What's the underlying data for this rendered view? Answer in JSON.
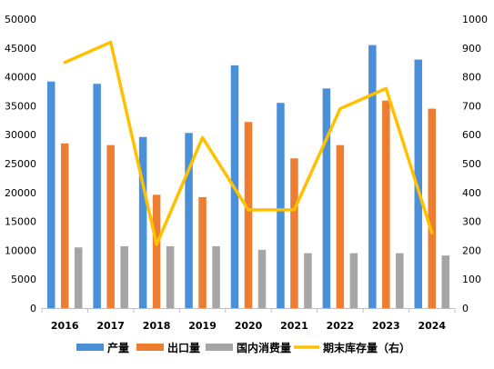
{
  "chart_data": {
    "type": "bar",
    "categories": [
      "2016",
      "2017",
      "2018",
      "2019",
      "2020",
      "2021",
      "2022",
      "2023",
      "2024"
    ],
    "series": [
      {
        "name": "产量",
        "kind": "bar",
        "axis": "left",
        "color": "#4A90D9",
        "values": [
          39200,
          38800,
          29600,
          30300,
          42000,
          35500,
          38000,
          45500,
          43000
        ]
      },
      {
        "name": "出口量",
        "kind": "bar",
        "axis": "left",
        "color": "#ED7D31",
        "values": [
          28500,
          28200,
          19600,
          19200,
          32200,
          25900,
          28200,
          35900,
          34500
        ]
      },
      {
        "name": "国内消费量",
        "kind": "bar",
        "axis": "left",
        "color": "#A5A5A5",
        "values": [
          10500,
          10700,
          10700,
          10700,
          10100,
          9500,
          9500,
          9500,
          9100
        ]
      },
      {
        "name": "期末库存量（右）",
        "kind": "line",
        "axis": "right",
        "color": "#FFC000",
        "values": [
          850,
          920,
          220,
          590,
          340,
          340,
          690,
          760,
          260
        ]
      }
    ],
    "y_left": {
      "min": 0,
      "max": 50000,
      "step": 5000,
      "tick_labels": [
        "0",
        "5000",
        "10000",
        "15000",
        "20000",
        "25000",
        "30000",
        "35000",
        "40000",
        "45000",
        "50000"
      ]
    },
    "y_right": {
      "min": 0,
      "max": 1000,
      "step": 100,
      "tick_labels": [
        "0",
        "100",
        "200",
        "300",
        "400",
        "500",
        "600",
        "700",
        "800",
        "900",
        "1000"
      ]
    },
    "grid": false,
    "legend_position": "bottom",
    "title": "",
    "xlabel": "",
    "ylabel": ""
  }
}
